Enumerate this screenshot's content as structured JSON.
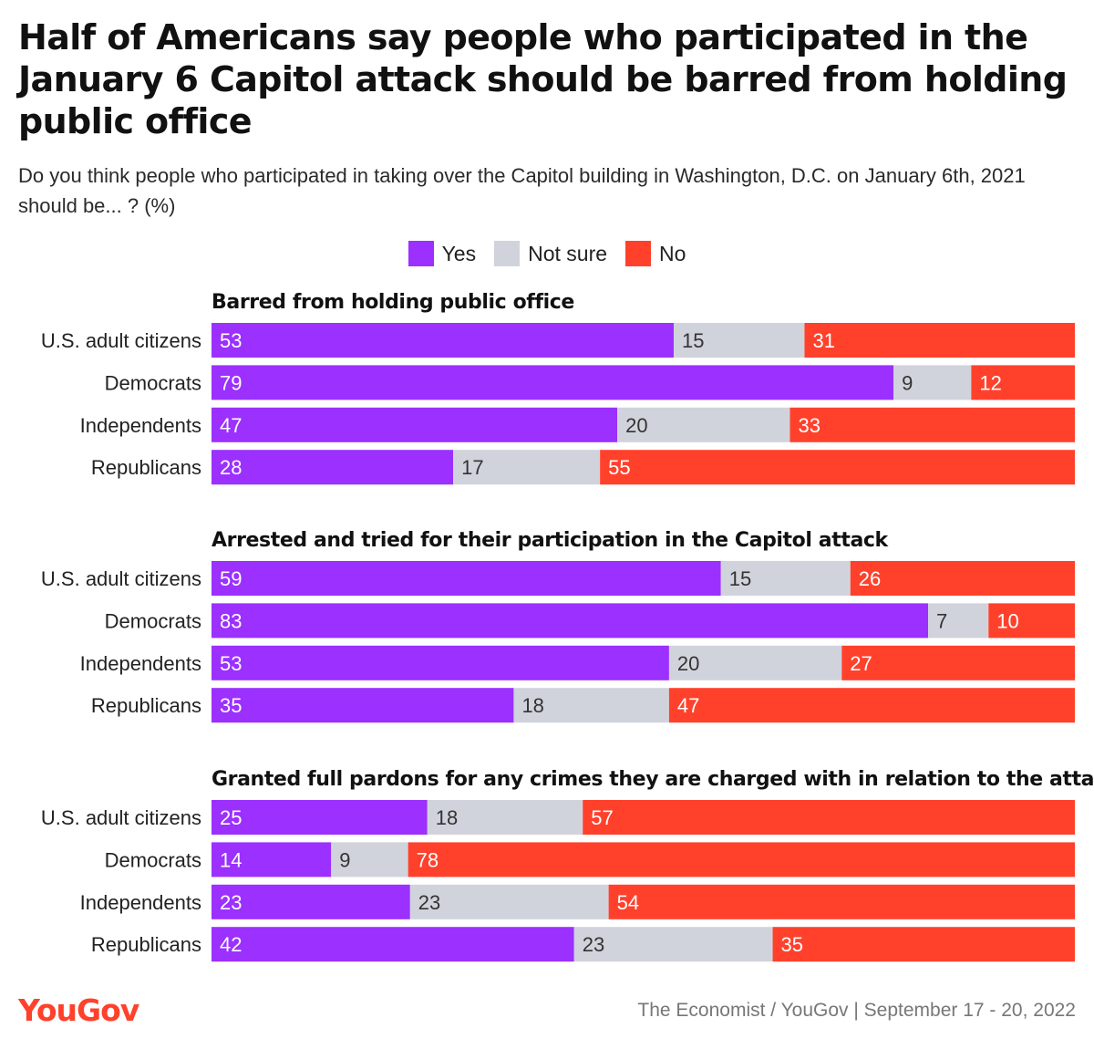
{
  "header": {
    "title": "Half of Americans say people who participated in the January 6 Capitol attack should be barred from holding public office",
    "subtitle": "Do you think people who participated in taking over the Capitol building in Washington, D.C. on January 6th, 2021 should be... ? (%)"
  },
  "legend": [
    {
      "label": "Yes",
      "color": "#9b30ff"
    },
    {
      "label": "Not sure",
      "color": "#d1d3dc"
    },
    {
      "label": "No",
      "color": "#ff412c"
    }
  ],
  "footer": {
    "logo": "YouGov",
    "source": "The Economist / YouGov | September 17 - 20, 2022"
  },
  "chart_data": {
    "type": "bar",
    "orientation": "horizontal",
    "stacked": true,
    "xlim": [
      0,
      100
    ],
    "grid": false,
    "legend_position": "top-center",
    "categories": [
      "U.S. adult citizens",
      "Democrats",
      "Independents",
      "Republicans"
    ],
    "series_names": [
      "Yes",
      "Not sure",
      "No"
    ],
    "colors": [
      "#9b30ff",
      "#d1d3dc",
      "#ff412c"
    ],
    "label_colors": [
      "#ffffff",
      "#333333",
      "#ffffff"
    ],
    "panels": [
      {
        "title": "Barred from holding public office",
        "rows": [
          [
            53,
            15,
            31
          ],
          [
            79,
            9,
            12
          ],
          [
            47,
            20,
            33
          ],
          [
            28,
            17,
            55
          ]
        ]
      },
      {
        "title": "Arrested and tried for their participation in the Capitol attack",
        "rows": [
          [
            59,
            15,
            26
          ],
          [
            83,
            7,
            10
          ],
          [
            53,
            20,
            27
          ],
          [
            35,
            18,
            47
          ]
        ]
      },
      {
        "title": "Granted full pardons for any crimes they are charged with in relation to the attack",
        "rows": [
          [
            25,
            18,
            57
          ],
          [
            14,
            9,
            78
          ],
          [
            23,
            23,
            54
          ],
          [
            42,
            23,
            35
          ]
        ]
      }
    ]
  }
}
